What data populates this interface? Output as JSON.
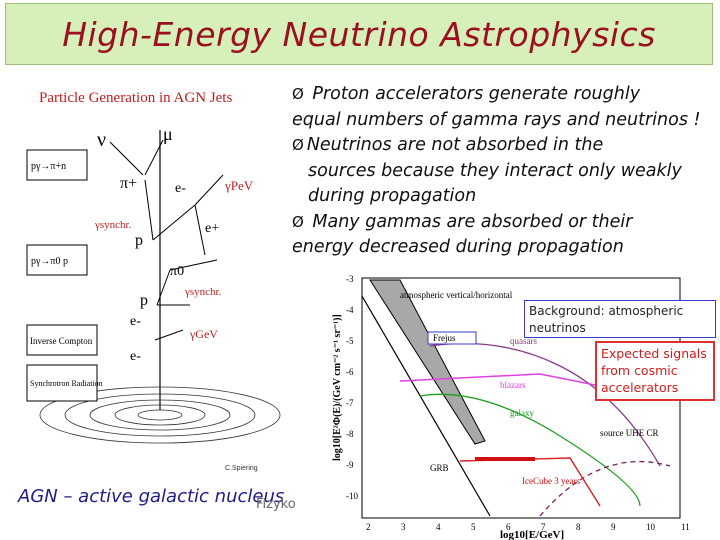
{
  "title": "High-Energy Neutrino Astrophysics",
  "diagram": {
    "heading": "Particle Generation in AGN Jets",
    "particles": [
      "ν",
      "μ",
      "π+",
      "e-",
      "e+",
      "γPeV",
      "γsynchr.",
      "p",
      "π0",
      "p",
      "γsynchr.",
      "e-",
      "γGeV",
      "e-"
    ],
    "processes": [
      "pγ→π+n",
      "pγ→π0 p",
      "Inverse Compton",
      "Synchrotron Radiation"
    ],
    "credit": "C.Spiering"
  },
  "bullets": [
    {
      "text": "Proton accelerators generate roughly",
      "cont": "equal numbers of gamma rays and neutrinos !"
    },
    {
      "text": "Neutrinos are not absorbed in the",
      "cont": "sources because they interact only weakly during propagation"
    },
    {
      "text": "Many gammas are absorbed or their",
      "cont": "energy decreased during propagation"
    }
  ],
  "footer": {
    "left": "AGN – active galactic nucleus",
    "small": "Fizyko"
  },
  "plot": {
    "ylabel": "log10[E²Φ(E)/(GeV cm⁻² s⁻¹ sr⁻¹)]",
    "xlabel": "log10[E/GeV]",
    "xticks": [
      "2",
      "3",
      "4",
      "5",
      "6",
      "7",
      "8",
      "9",
      "10",
      "11"
    ],
    "yticks": [
      "-3",
      "-4",
      "-5",
      "-6",
      "-7",
      "-8",
      "-9",
      "-10"
    ],
    "labels": {
      "atm": "atmospheric vertical/horizontal",
      "frejus": "Frejus",
      "quasars": "quasars",
      "blazars": "blazars",
      "galaxy": "galaxy",
      "grb": "GRB",
      "icecube": "IceCube 3 years",
      "source": "source UHE CR"
    },
    "colors": {
      "band": "#a8a8a8",
      "atm": "#000000",
      "quasars": "#8a3a8a",
      "blazars": "#e040e0",
      "galaxy": "#20a020",
      "grb": "#e02020",
      "source": "#7a2060",
      "icecube": "#d01010"
    }
  },
  "annotations": {
    "background": "Background: atmospheric neutrinos",
    "signals": "Expected signals from cosmic accelerators"
  }
}
